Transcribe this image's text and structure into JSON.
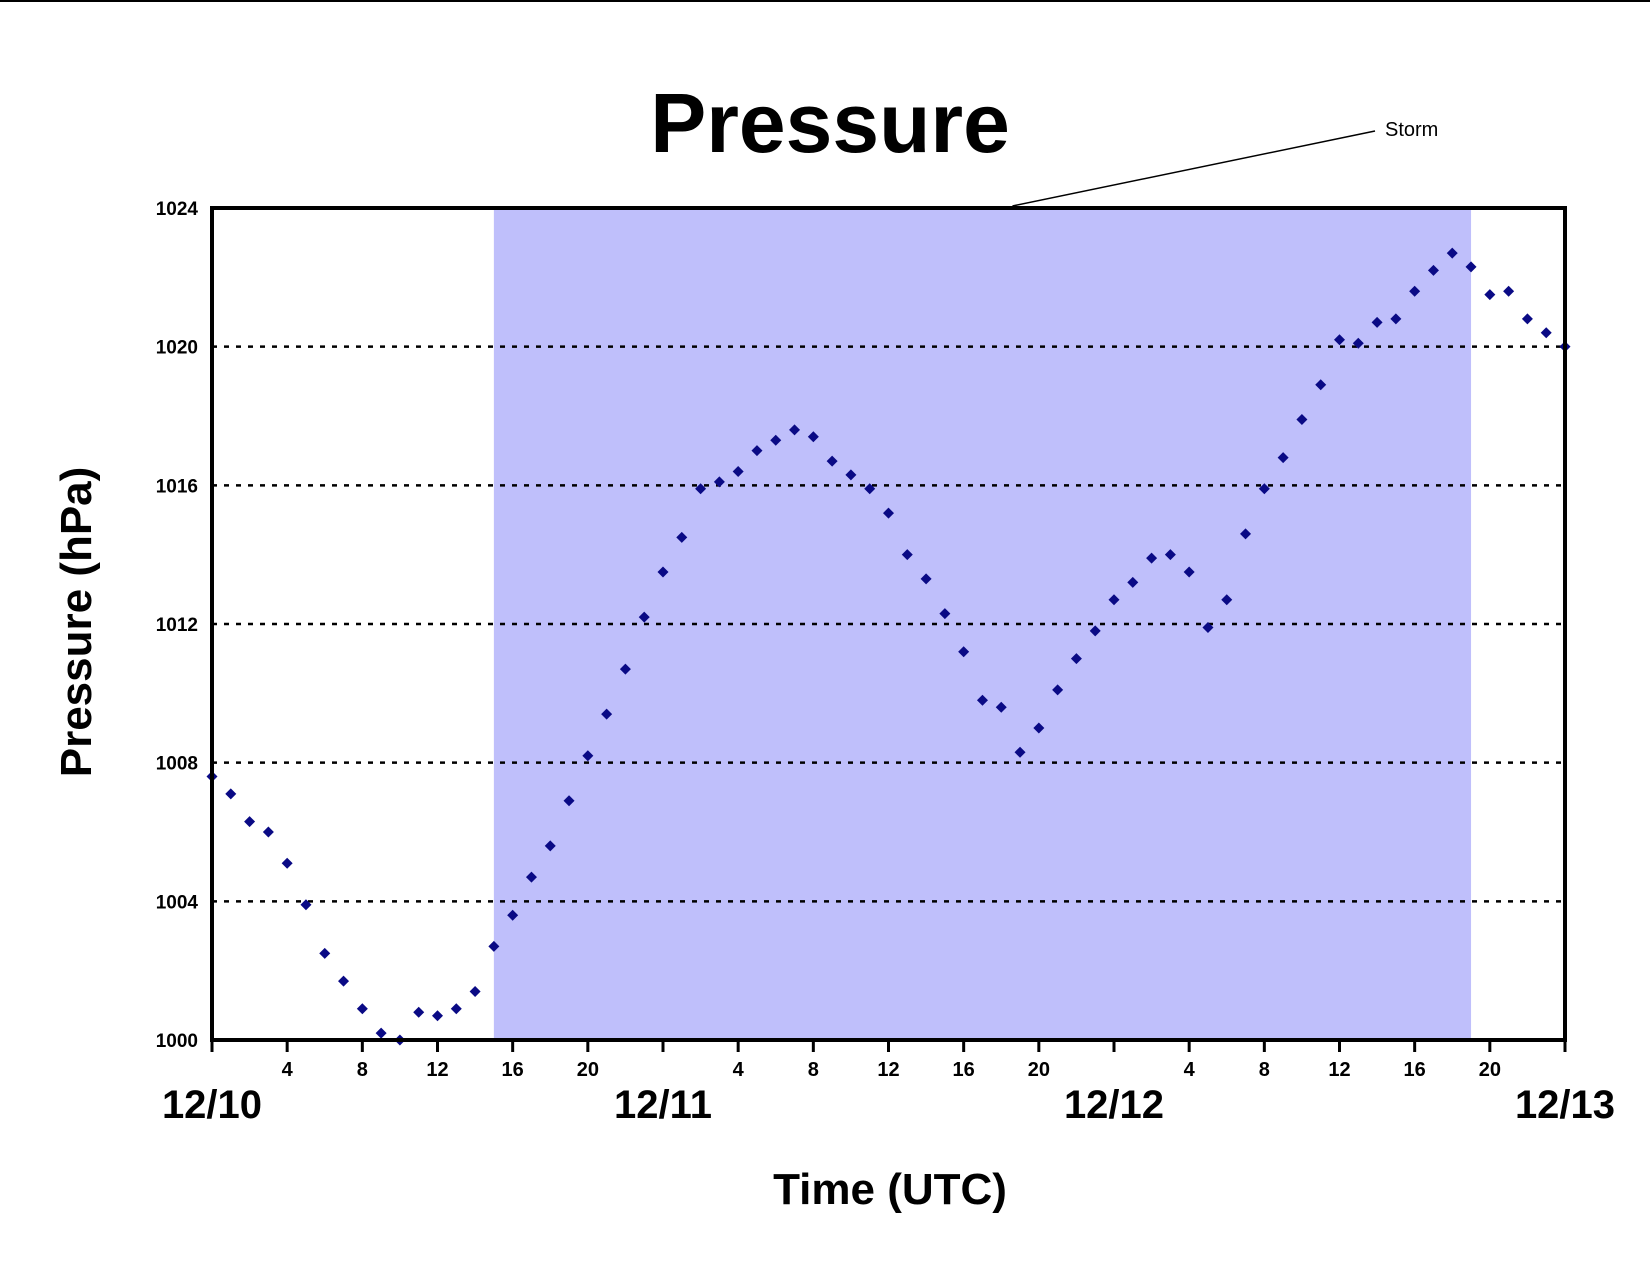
{
  "chart_data": {
    "type": "scatter",
    "title": "Pressure",
    "xlabel": "Time (UTC)",
    "ylabel": "Pressure (hPa)",
    "ylim": [
      1000,
      1024
    ],
    "xlim": [
      "12/10 00",
      "12/13 00"
    ],
    "yticks": [
      "1000",
      "1004",
      "1008",
      "1012",
      "1016",
      "1020",
      "1024"
    ],
    "xticks_hours": [
      "4",
      "8",
      "12",
      "16",
      "20",
      "4",
      "8",
      "12",
      "16",
      "20",
      "4",
      "8",
      "12",
      "16",
      "20",
      "4",
      "8",
      "12",
      "16",
      "20"
    ],
    "date_labels": [
      "12/10",
      "12/11",
      "12/12",
      "12/13"
    ],
    "grid": "horizontal dotted",
    "shaded_region": {
      "label": "Storm",
      "from": "12/10 15",
      "to": "12/12 19",
      "color": "#bfbffb"
    },
    "marker_color": "#0a0a85",
    "series": [
      {
        "x": [
          "12/10 00",
          "12/10 01",
          "12/10 02",
          "12/10 03",
          "12/10 04",
          "12/10 05",
          "12/10 06",
          "12/10 07",
          "12/10 08",
          "12/10 09",
          "12/10 10",
          "12/10 11",
          "12/10 12",
          "12/10 13",
          "12/10 14",
          "12/10 15",
          "12/10 16",
          "12/10 17",
          "12/10 18",
          "12/10 19",
          "12/10 20",
          "12/10 21",
          "12/10 22",
          "12/10 23",
          "12/11 00",
          "12/11 01",
          "12/11 02",
          "12/11 03",
          "12/11 04",
          "12/11 05",
          "12/11 06",
          "12/11 07",
          "12/11 08",
          "12/11 09",
          "12/11 10",
          "12/11 11",
          "12/11 12",
          "12/11 13",
          "12/11 14",
          "12/11 15",
          "12/11 16",
          "12/11 17",
          "12/11 18",
          "12/11 19",
          "12/11 20",
          "12/11 21",
          "12/11 22",
          "12/11 23",
          "12/12 00",
          "12/12 01",
          "12/12 02",
          "12/12 03",
          "12/12 04",
          "12/12 05",
          "12/12 06",
          "12/12 07",
          "12/12 08",
          "12/12 09",
          "12/12 10",
          "12/12 11",
          "12/12 12",
          "12/12 13",
          "12/12 14",
          "12/12 15",
          "12/12 16",
          "12/12 17",
          "12/12 18",
          "12/12 19",
          "12/12 20",
          "12/12 21",
          "12/12 22",
          "12/12 23",
          "12/13 00"
        ],
        "values": [
          1007.6,
          1007.1,
          1006.3,
          1006.0,
          1005.1,
          1003.9,
          1002.5,
          1001.7,
          1000.9,
          1000.2,
          1000.0,
          1000.8,
          1000.7,
          1000.9,
          1001.4,
          1002.7,
          1003.6,
          1004.7,
          1005.6,
          1006.9,
          1008.2,
          1009.4,
          1010.7,
          1012.2,
          1013.5,
          1014.5,
          1015.9,
          1016.1,
          1016.4,
          1017.0,
          1017.3,
          1017.6,
          1017.4,
          1016.7,
          1016.3,
          1015.9,
          1015.2,
          1014.0,
          1013.3,
          1012.3,
          1011.2,
          1009.8,
          1009.6,
          1008.3,
          1009.0,
          1010.1,
          1011.0,
          1011.8,
          1012.7,
          1013.2,
          1013.9,
          1014.0,
          1013.5,
          1011.9,
          1012.7,
          1014.6,
          1015.9,
          1016.8,
          1017.9,
          1018.9,
          1020.2,
          1020.1,
          1020.7,
          1020.8,
          1021.6,
          1022.2,
          1022.7,
          1022.3,
          1021.5,
          1021.6,
          1020.8,
          1020.4,
          1020.0
        ]
      }
    ]
  }
}
